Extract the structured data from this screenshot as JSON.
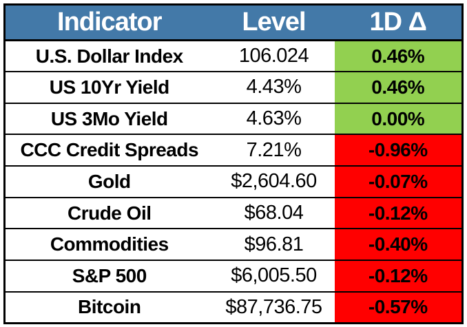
{
  "colors": {
    "header_bg": "#4379A8",
    "header_text": "#FFFFFF",
    "positive_bg": "#92D050",
    "negative_bg": "#FF0000",
    "cell_bg": "#FFFFFF",
    "border": "#000000",
    "text": "#000000"
  },
  "table": {
    "columns": [
      {
        "label": "Indicator"
      },
      {
        "label": "Level"
      },
      {
        "label": "1D Δ"
      }
    ],
    "rows": [
      {
        "indicator": "U.S. Dollar Index",
        "level": "106.024",
        "delta": "0.46%",
        "direction": "positive"
      },
      {
        "indicator": "US 10Yr Yield",
        "level": "4.43%",
        "delta": "0.46%",
        "direction": "positive"
      },
      {
        "indicator": "US 3Mo Yield",
        "level": "4.63%",
        "delta": "0.00%",
        "direction": "positive"
      },
      {
        "indicator": "CCC Credit Spreads",
        "level": "7.21%",
        "delta": "-0.96%",
        "direction": "negative"
      },
      {
        "indicator": "Gold",
        "level": "$2,604.60",
        "delta": "-0.07%",
        "direction": "negative"
      },
      {
        "indicator": "Crude Oil",
        "level": "$68.04",
        "delta": "-0.12%",
        "direction": "negative"
      },
      {
        "indicator": "Commodities",
        "level": "$96.81",
        "delta": "-0.40%",
        "direction": "negative"
      },
      {
        "indicator": "S&P 500",
        "level": "$6,005.50",
        "delta": "-0.12%",
        "direction": "negative"
      },
      {
        "indicator": "Bitcoin",
        "level": "$87,736.75",
        "delta": "-0.57%",
        "direction": "negative"
      }
    ]
  },
  "chart_data": {
    "type": "table",
    "columns": [
      "Indicator",
      "Level",
      "1D Δ"
    ],
    "rows": [
      [
        "U.S. Dollar Index",
        "106.024",
        "0.46%"
      ],
      [
        "US 10Yr Yield",
        "4.43%",
        "0.46%"
      ],
      [
        "US 3Mo Yield",
        "4.63%",
        "0.00%"
      ],
      [
        "CCC Credit Spreads",
        "7.21%",
        "-0.96%"
      ],
      [
        "Gold",
        "$2,604.60",
        "-0.07%"
      ],
      [
        "Crude Oil",
        "$68.04",
        "-0.12%"
      ],
      [
        "Commodities",
        "$96.81",
        "-0.40%"
      ],
      [
        "S&P 500",
        "$6,005.50",
        "-0.12%"
      ],
      [
        "Bitcoin",
        "$87,736.75",
        "-0.57%"
      ]
    ],
    "notes": "Delta column cell fill: green (#92D050) for rows 0-2 (non-negative change), red (#FF0000) for rows 3-8 (negative change)."
  }
}
